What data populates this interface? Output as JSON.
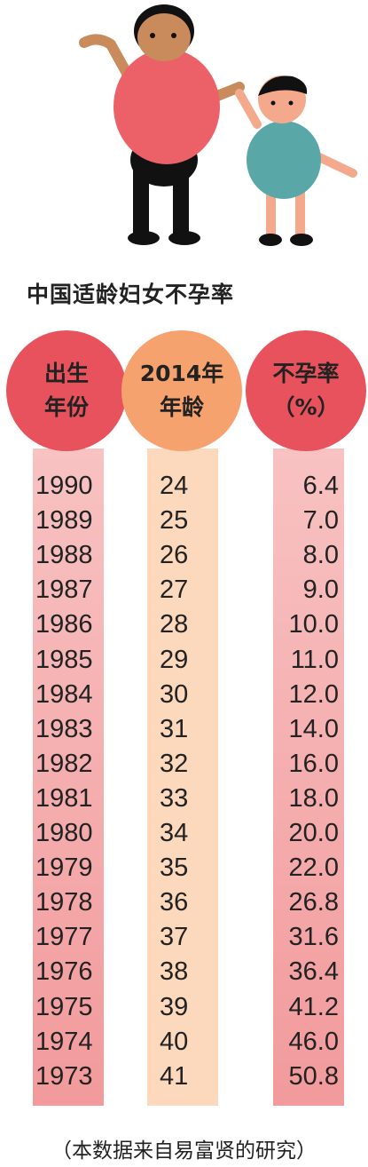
{
  "title": "中国适龄妇女不孕率",
  "table": {
    "headers": [
      [
        "出生",
        "年份"
      ],
      [
        "2014年",
        "年龄"
      ],
      [
        "不孕率",
        "（%）"
      ]
    ],
    "rows": [
      [
        "1990",
        "24",
        "6.4"
      ],
      [
        "1989",
        "25",
        "7.0"
      ],
      [
        "1988",
        "26",
        "8.0"
      ],
      [
        "1987",
        "27",
        "9.0"
      ],
      [
        "1986",
        "28",
        "10.0"
      ],
      [
        "1985",
        "29",
        "11.0"
      ],
      [
        "1984",
        "30",
        "12.0"
      ],
      [
        "1983",
        "31",
        "14.0"
      ],
      [
        "1982",
        "32",
        "16.0"
      ],
      [
        "1981",
        "33",
        "18.0"
      ],
      [
        "1980",
        "34",
        "20.0"
      ],
      [
        "1979",
        "35",
        "22.0"
      ],
      [
        "1978",
        "36",
        "26.8"
      ],
      [
        "1977",
        "37",
        "31.6"
      ],
      [
        "1976",
        "38",
        "36.4"
      ],
      [
        "1975",
        "39",
        "41.2"
      ],
      [
        "1974",
        "40",
        "46.0"
      ],
      [
        "1973",
        "41",
        "50.8"
      ]
    ]
  },
  "footer": "（本数据来自易富贤的研究）"
}
